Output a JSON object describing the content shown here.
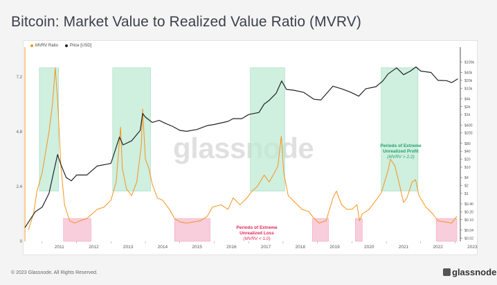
{
  "title": "Bitcoin: Market Value to Realized Value Ratio (MVRV)",
  "legend": [
    {
      "label": "MVRV Ratio",
      "color": "#f7931a"
    },
    {
      "label": "Price [USD]",
      "color": "#222222"
    }
  ],
  "watermark": "glassnode",
  "footer": "© 2023 Glassnode. All Rights Reserved.",
  "brand": "glassnode",
  "annotations": {
    "profit": {
      "lines": [
        "Periods of Extreme",
        "Unrealized Profit",
        "(MVRV > 2.2)"
      ],
      "color": "#22a06b"
    },
    "loss": {
      "lines": [
        "Periods of Extreme",
        "Unrealized Loss",
        "(MVRV < 1.0)"
      ],
      "color": "#e0245e"
    }
  },
  "chart_data": {
    "type": "line",
    "title": "Bitcoin: Market Value to Realized Value Ratio (MVRV)",
    "x_ticks": [
      "2011",
      "2012",
      "2013",
      "2014",
      "2015",
      "2016",
      "2017",
      "2018",
      "2019",
      "2020",
      "2021",
      "2022",
      "2023"
    ],
    "left_axis": {
      "ticks": [
        "0",
        "2.4",
        "4.8",
        "7.2"
      ],
      "values": [
        0,
        2.4,
        4.8,
        7.2
      ],
      "range": [
        0,
        8.2
      ]
    },
    "right_axis": {
      "scale": "log",
      "ticks": [
        "$0.02",
        "$0.04",
        "$0.10",
        "$0.20",
        "$0.40",
        "$1",
        "$2",
        "$4",
        "$10",
        "$20",
        "$40",
        "$80",
        "$200",
        "$400",
        "$1k",
        "$2k",
        "$4k",
        "$10k",
        "$20k",
        "$40k",
        "$100k"
      ],
      "values": [
        0.02,
        0.04,
        0.1,
        0.2,
        0.4,
        1,
        2,
        4,
        10,
        20,
        40,
        80,
        200,
        400,
        1000,
        2000,
        4000,
        10000,
        20000,
        40000,
        100000
      ]
    },
    "profit_zones": [
      [
        2010.92,
        2011.48
      ],
      [
        2013.05,
        2014.15
      ],
      [
        2017.05,
        2018.05
      ],
      [
        2020.85,
        2021.92
      ]
    ],
    "loss_zones": [
      [
        2011.62,
        2012.42
      ],
      [
        2014.85,
        2015.88
      ],
      [
        2018.85,
        2019.32
      ],
      [
        2020.1,
        2020.3
      ],
      [
        2022.45,
        2023.05
      ]
    ],
    "series": [
      {
        "name": "MVRV Ratio",
        "axis": "left",
        "points": [
          [
            2010.6,
            0.5
          ],
          [
            2010.75,
            1.2
          ],
          [
            2010.85,
            2.2
          ],
          [
            2011.0,
            3.0
          ],
          [
            2011.2,
            4.8
          ],
          [
            2011.3,
            6.0
          ],
          [
            2011.38,
            7.6
          ],
          [
            2011.45,
            6.2
          ],
          [
            2011.55,
            3.2
          ],
          [
            2011.65,
            1.6
          ],
          [
            2011.8,
            0.9
          ],
          [
            2011.95,
            0.8
          ],
          [
            2012.1,
            0.9
          ],
          [
            2012.3,
            1.0
          ],
          [
            2012.45,
            1.2
          ],
          [
            2012.6,
            1.4
          ],
          [
            2012.8,
            1.5
          ],
          [
            2013.0,
            1.8
          ],
          [
            2013.15,
            2.6
          ],
          [
            2013.28,
            5.0
          ],
          [
            2013.33,
            3.2
          ],
          [
            2013.45,
            2.3
          ],
          [
            2013.6,
            2.0
          ],
          [
            2013.75,
            2.6
          ],
          [
            2013.88,
            4.2
          ],
          [
            2013.92,
            5.8
          ],
          [
            2014.0,
            3.6
          ],
          [
            2014.1,
            3.2
          ],
          [
            2014.2,
            2.5
          ],
          [
            2014.35,
            1.9
          ],
          [
            2014.5,
            1.8
          ],
          [
            2014.7,
            1.4
          ],
          [
            2014.85,
            1.0
          ],
          [
            2015.0,
            0.85
          ],
          [
            2015.2,
            0.8
          ],
          [
            2015.4,
            0.85
          ],
          [
            2015.6,
            0.9
          ],
          [
            2015.8,
            1.1
          ],
          [
            2015.95,
            1.5
          ],
          [
            2016.2,
            1.6
          ],
          [
            2016.4,
            1.4
          ],
          [
            2016.55,
            1.9
          ],
          [
            2016.75,
            1.6
          ],
          [
            2016.95,
            1.9
          ],
          [
            2017.1,
            2.2
          ],
          [
            2017.25,
            2.4
          ],
          [
            2017.45,
            2.9
          ],
          [
            2017.6,
            2.6
          ],
          [
            2017.75,
            3.0
          ],
          [
            2017.85,
            3.3
          ],
          [
            2017.95,
            4.6
          ],
          [
            2018.02,
            3.0
          ],
          [
            2018.15,
            2.0
          ],
          [
            2018.35,
            1.7
          ],
          [
            2018.55,
            1.4
          ],
          [
            2018.75,
            1.3
          ],
          [
            2018.9,
            1.0
          ],
          [
            2019.05,
            0.8
          ],
          [
            2019.25,
            0.9
          ],
          [
            2019.45,
            1.9
          ],
          [
            2019.55,
            2.2
          ],
          [
            2019.7,
            1.6
          ],
          [
            2019.85,
            1.4
          ],
          [
            2020.0,
            1.4
          ],
          [
            2020.15,
            1.6
          ],
          [
            2020.22,
            0.9
          ],
          [
            2020.3,
            1.2
          ],
          [
            2020.5,
            1.4
          ],
          [
            2020.7,
            1.8
          ],
          [
            2020.85,
            2.1
          ],
          [
            2020.95,
            2.6
          ],
          [
            2021.05,
            3.1
          ],
          [
            2021.12,
            3.6
          ],
          [
            2021.25,
            3.3
          ],
          [
            2021.38,
            2.5
          ],
          [
            2021.5,
            1.7
          ],
          [
            2021.6,
            1.9
          ],
          [
            2021.75,
            2.6
          ],
          [
            2021.85,
            2.7
          ],
          [
            2021.95,
            2.0
          ],
          [
            2022.15,
            1.5
          ],
          [
            2022.35,
            1.2
          ],
          [
            2022.5,
            0.9
          ],
          [
            2022.7,
            0.85
          ],
          [
            2022.9,
            0.8
          ],
          [
            2023.05,
            1.1
          ]
        ]
      },
      {
        "name": "Price [USD]",
        "axis": "right",
        "points": [
          [
            2010.5,
            0.05
          ],
          [
            2010.8,
            0.2
          ],
          [
            2011.0,
            0.3
          ],
          [
            2011.2,
            1
          ],
          [
            2011.35,
            8
          ],
          [
            2011.45,
            30
          ],
          [
            2011.55,
            12
          ],
          [
            2011.7,
            4
          ],
          [
            2011.85,
            3
          ],
          [
            2012.0,
            5
          ],
          [
            2012.3,
            5
          ],
          [
            2012.6,
            11
          ],
          [
            2012.9,
            13
          ],
          [
            2013.0,
            14
          ],
          [
            2013.25,
            140
          ],
          [
            2013.35,
            70
          ],
          [
            2013.6,
            100
          ],
          [
            2013.85,
            250
          ],
          [
            2013.92,
            1100
          ],
          [
            2014.0,
            800
          ],
          [
            2014.2,
            500
          ],
          [
            2014.4,
            600
          ],
          [
            2014.6,
            450
          ],
          [
            2014.8,
            350
          ],
          [
            2015.0,
            250
          ],
          [
            2015.2,
            230
          ],
          [
            2015.5,
            270
          ],
          [
            2015.8,
            380
          ],
          [
            2016.0,
            420
          ],
          [
            2016.4,
            550
          ],
          [
            2016.55,
            700
          ],
          [
            2016.8,
            700
          ],
          [
            2017.0,
            1000
          ],
          [
            2017.3,
            1200
          ],
          [
            2017.45,
            2500
          ],
          [
            2017.6,
            3500
          ],
          [
            2017.8,
            6500
          ],
          [
            2017.96,
            19000
          ],
          [
            2018.1,
            9000
          ],
          [
            2018.3,
            8500
          ],
          [
            2018.6,
            7000
          ],
          [
            2018.9,
            3800
          ],
          [
            2019.1,
            3600
          ],
          [
            2019.45,
            12000
          ],
          [
            2019.7,
            9500
          ],
          [
            2019.95,
            7200
          ],
          [
            2020.2,
            5000
          ],
          [
            2020.4,
            9500
          ],
          [
            2020.7,
            11500
          ],
          [
            2020.9,
            19000
          ],
          [
            2021.05,
            35000
          ],
          [
            2021.3,
            60000
          ],
          [
            2021.5,
            33000
          ],
          [
            2021.7,
            45000
          ],
          [
            2021.86,
            65000
          ],
          [
            2022.0,
            45000
          ],
          [
            2022.3,
            40000
          ],
          [
            2022.5,
            20000
          ],
          [
            2022.75,
            19500
          ],
          [
            2022.9,
            16500
          ],
          [
            2023.08,
            23000
          ]
        ]
      }
    ]
  }
}
